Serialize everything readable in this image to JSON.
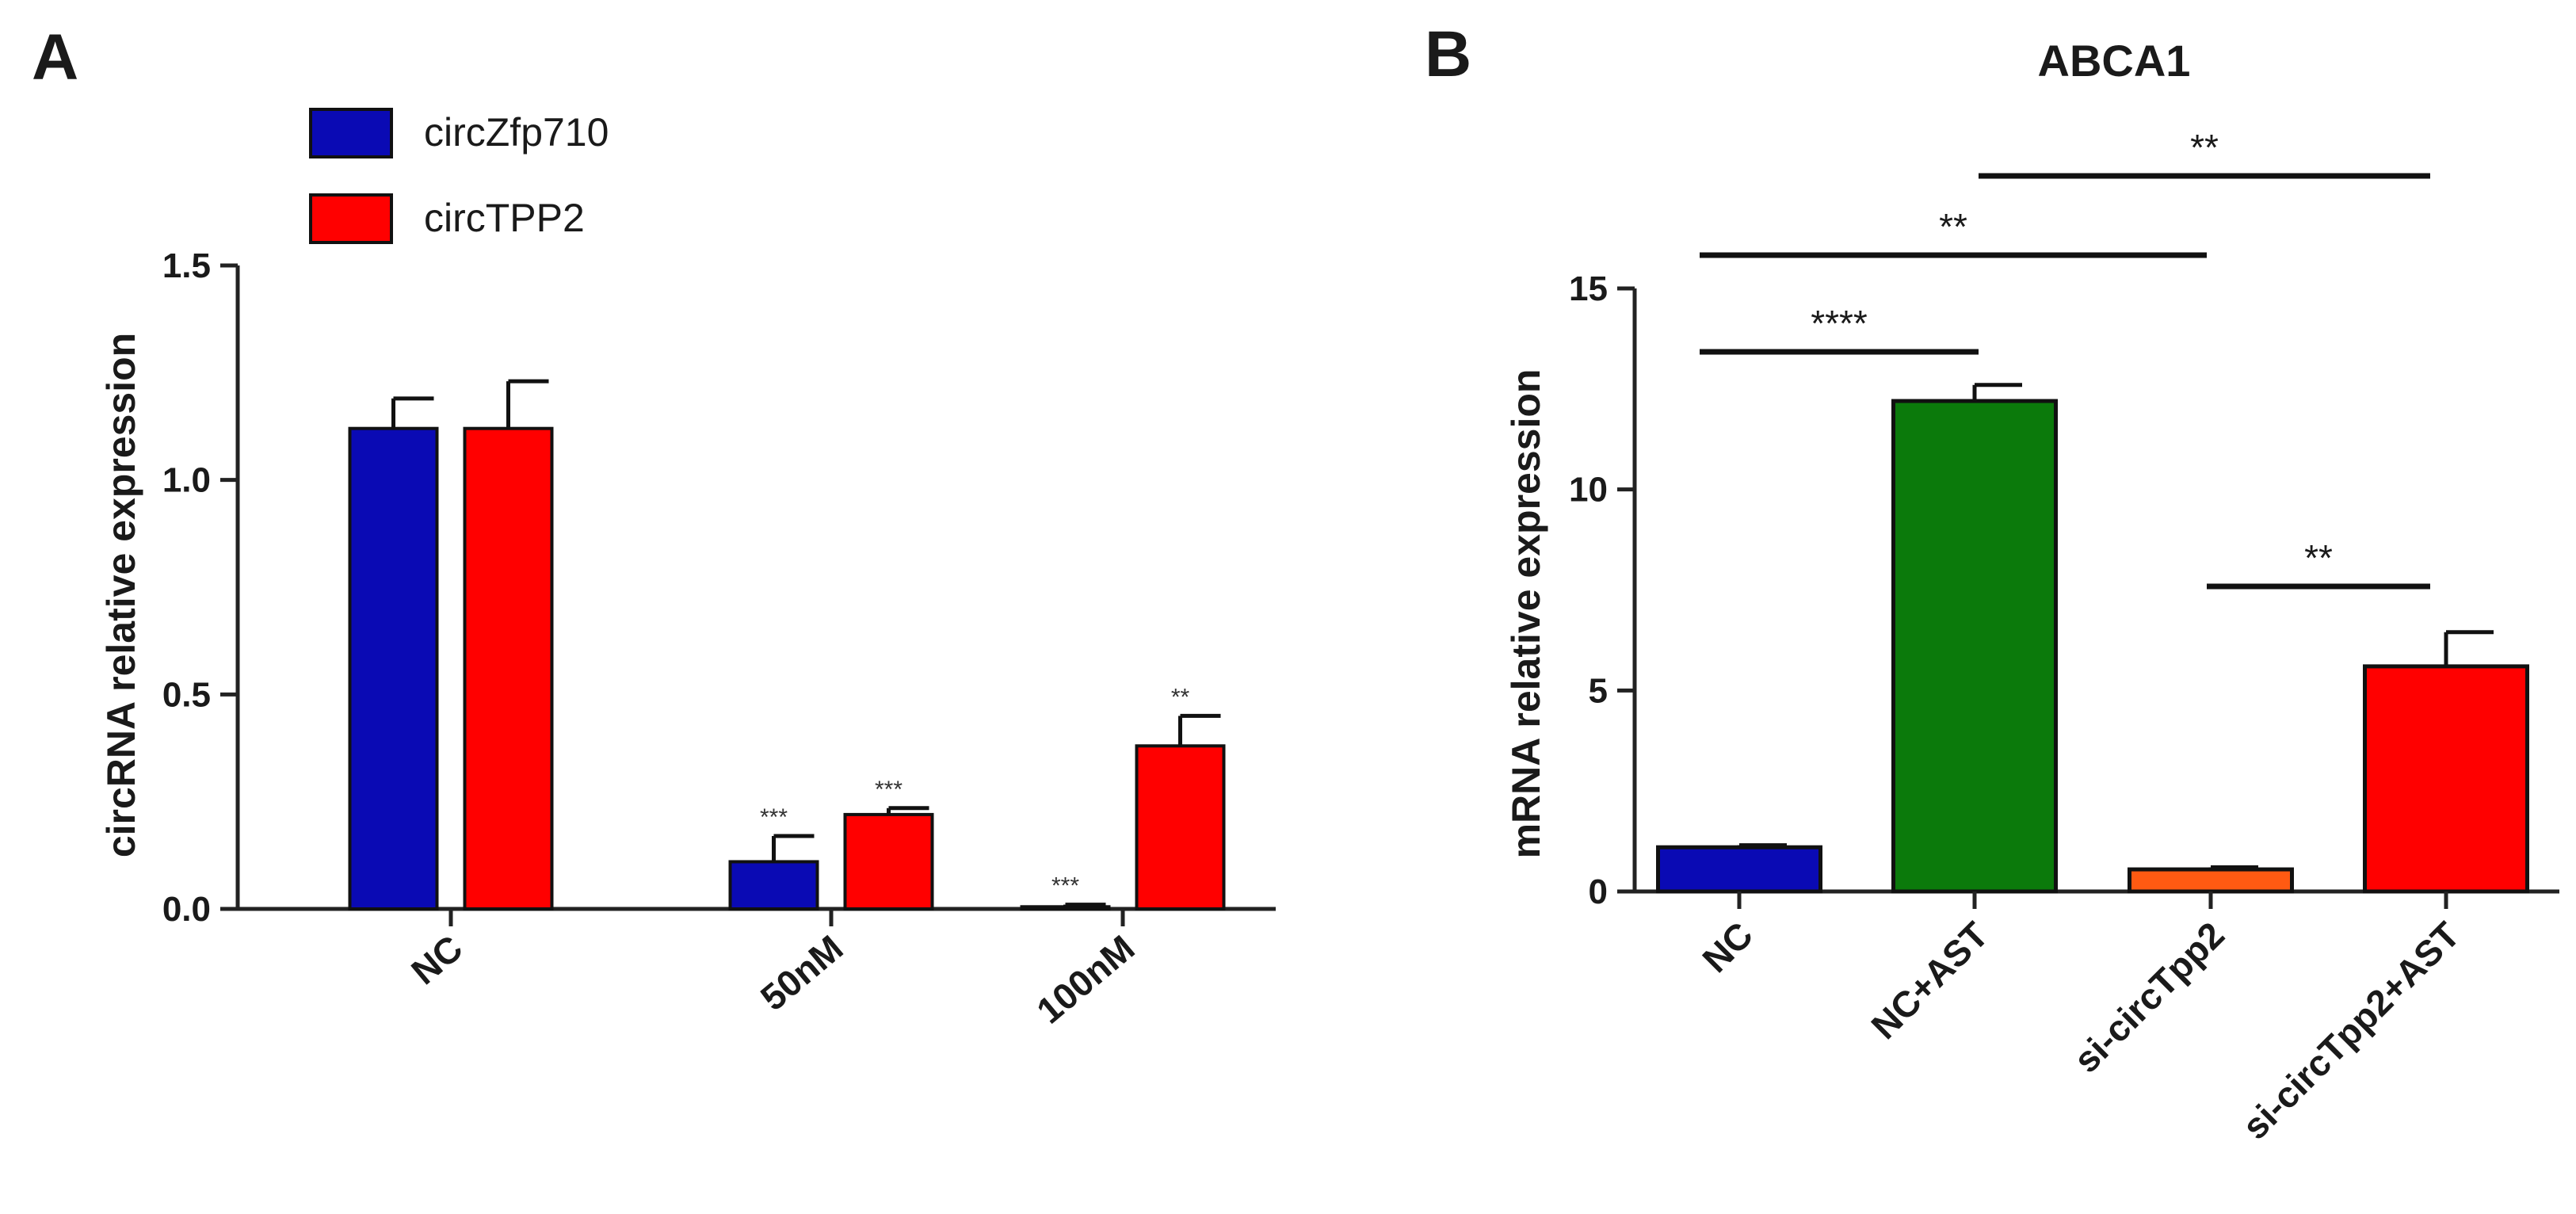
{
  "chart_data": [
    {
      "panel": "A",
      "type": "bar",
      "title": "",
      "xlabel": "",
      "ylabel": "circRNA relative expression",
      "ylim": [
        0,
        1.5
      ],
      "yticks": [
        "0.0",
        "0.5",
        "1.0",
        "1.5"
      ],
      "categories": [
        "NC",
        "50nM",
        "100nM"
      ],
      "legend_position": "top-left",
      "series": [
        {
          "name": "circZfp710",
          "color": "#0a0ab4",
          "values": [
            1.12,
            0.11,
            0.005
          ],
          "errors": [
            0.07,
            0.06,
            0.005
          ],
          "significance": [
            "",
            "***",
            "***"
          ]
        },
        {
          "name": "circTPP2",
          "color": "#ff0000",
          "values": [
            1.12,
            0.22,
            0.38
          ],
          "errors": [
            0.11,
            0.015,
            0.07
          ],
          "significance": [
            "",
            "***",
            "**"
          ]
        }
      ]
    },
    {
      "panel": "B",
      "type": "bar",
      "title": "ABCA1",
      "xlabel": "",
      "ylabel": "mRNA relative expression",
      "ylim": [
        0,
        15
      ],
      "yticks": [
        "0",
        "5",
        "10",
        "15"
      ],
      "categories": [
        "NC",
        "NC+AST",
        "si-circTpp2",
        "si-circTpp2+AST"
      ],
      "values": [
        1.1,
        12.2,
        0.55,
        5.6
      ],
      "errors": [
        0.05,
        0.4,
        0.05,
        0.85
      ],
      "colors": [
        "#0a0ab4",
        "#0b7a0b",
        "#ff5a12",
        "#ff0000"
      ],
      "comparisons": [
        {
          "from": "NC",
          "to": "NC+AST",
          "label": "****"
        },
        {
          "from": "NC",
          "to": "si-circTpp2",
          "label": "**"
        },
        {
          "from": "NC+AST",
          "to": "si-circTpp2+AST",
          "label": "**"
        },
        {
          "from": "si-circTpp2",
          "to": "si-circTpp2+AST",
          "label": "**"
        }
      ]
    }
  ]
}
